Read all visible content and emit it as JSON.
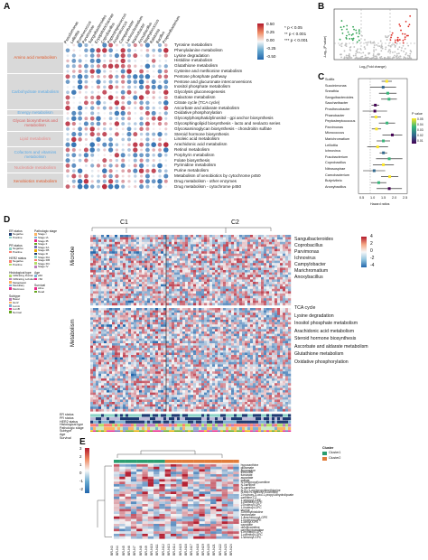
{
  "panels": {
    "A": "A",
    "B": "B",
    "C": "C",
    "D": "D",
    "E": "E"
  },
  "panelA": {
    "col_labels": [
      "Pseudomonas",
      "Lelliottia",
      "Ruminococcus",
      "Parvimonas",
      "Sanguibacteroides",
      "Erysipelotrichaceae",
      "Coprobacillus",
      "Peptostreptococcus",
      "Anaerotruncus",
      "Campylobacter",
      "Lachnoclostridium",
      "Marinobacter",
      "Anoxybacillus",
      "Staphylococcus",
      "Ralstonia",
      "Bacillus",
      "Propionibacterium"
    ],
    "categories": [
      {
        "label": "Amino acid metabolism",
        "color": "#e05a2b"
      },
      {
        "label": "Carbohydrate metabolism",
        "color": "#5aa9e6"
      },
      {
        "label": "Energy metabolism",
        "color": "#5aa9e6"
      },
      {
        "label": "Glycan biosynthesis and metabolism",
        "color": "#d95f5f"
      },
      {
        "label": "Lipid metabolism",
        "color": "#e58a8a"
      },
      {
        "label": "Cofactors and vitamins metabolism",
        "color": "#5aa9e6"
      },
      {
        "label": "Nucleotide metabolism",
        "color": "#e58a8a"
      },
      {
        "label": "Xenobiotics metabolism",
        "color": "#e05a2b"
      }
    ],
    "pathways": [
      "Tyrosine metabolism",
      "Phenylalanine metabolism",
      "Lysine degradation",
      "Histidine metabolism",
      "Glutathione metabolism",
      "Cysteine and methionine metabolism",
      "Pentose phosphate pathway",
      "Pentose and glucuronate interconversions",
      "Inositol phosphate metabolism",
      "Glycolysis gluconeogenesis",
      "Galactose metabolism",
      "Citrate cycle (TCA cycle)",
      "Ascorbate and aldarate metabolism",
      "Oxidative phosphorylation",
      "Glycosylphosphatidylinositol - gpi anchor biosynthesis",
      "Glycosphingolipid biosynthesis - lacto and neolacto series",
      "Glycosaminoglycan biosynthesis - chondroitin sulfate",
      "Steroid hormone biosynthesis",
      "Linoleic acid metabolism",
      "Arachidonic acid metabolism",
      "Retinol metabolism",
      "Porphyrin metabolism",
      "Folate biosynthesis",
      "Pyrimidine metabolism",
      "Purine metabolism",
      "Metabolism of xenobiotics by cytochrome p450",
      "Drug metabolism - other enzymes",
      "Drug metabolism - cytochrome p450"
    ],
    "legend": {
      "ticks": [
        "0.50",
        "0.25",
        "0.00",
        "-0.25",
        "-0.50"
      ],
      "sig": [
        "* p < 0.05",
        "** p < 0.001",
        "*** p < 0.001"
      ]
    }
  },
  "panelB": {
    "xlabel": "Log₂(Fold change)",
    "ylabel": "-Log₁₀(P value)"
  },
  "panelC": {
    "taxa": [
      "Sutifix",
      "Succinimonas",
      "Sneathia",
      "Sanguibacteroides",
      "Saccharibacter",
      "Prosthecobacter",
      "Phaeobacter",
      "Peptostreptococcus",
      "Parvimonas",
      "Micrococcus",
      "Marichromatium",
      "Lelliottia",
      "Ichnovirus",
      "Fusobacterium",
      "Coprobacillus",
      "Nitrosospirae",
      "Carnobacterium",
      "Butyrivibrio",
      "Anoxybacillus"
    ],
    "xlabel": "Hazard ratios",
    "ticks": [
      "0.5",
      "1.0",
      "1.5",
      "2.0",
      "2.5"
    ],
    "legend_title": "P value",
    "legend_ticks": [
      "0.05",
      "0.04",
      "0.03",
      "0.02",
      "0.01"
    ]
  },
  "panelD": {
    "clusters": [
      "C1",
      "C2"
    ],
    "row_groups": [
      "Microbe",
      "Metabolism"
    ],
    "right_labels": [
      "Sanguibacteroides",
      "Coprobacillus",
      "Parvimonas",
      "Ichnovirus",
      "Campylobacter",
      "Marichromatium",
      "Anoxybacillus",
      "TCA cycle",
      "Lysine degradation",
      "Inositol phosphate metabolism",
      "Arachidonic acid metabolism",
      "Steroid hormone biosynthesis",
      "Ascorbate and aldarate metabolism",
      "Glutathione metabolism",
      "Oxidative phosphorylation"
    ],
    "annot_rows": [
      "ER status",
      "PR status",
      "HER2 status",
      "Histological type",
      "Pathologic stage",
      "Subtype",
      "Age",
      "Survival"
    ],
    "scale_ticks": [
      "4",
      "2",
      "0",
      "-2",
      "-4"
    ],
    "legend_groups": [
      {
        "title": "ER status",
        "items": [
          "Negative",
          "Positive"
        ]
      },
      {
        "title": "PR status",
        "items": [
          "Negative",
          "Positive"
        ]
      },
      {
        "title": "HER2 status",
        "items": [
          "Negative",
          "Positive"
        ]
      },
      {
        "title": "Histological type",
        "items": [
          "Infiltrating Ductal",
          "Infiltrating Lobular",
          "Metaplastic",
          "Medullary",
          "Mucinous"
        ]
      },
      {
        "title": "Subtype",
        "items": [
          "Basal",
          "Her2",
          "LumA",
          "LumB",
          "Normal"
        ]
      },
      {
        "title": "Pathologic stage",
        "items": [
          "Stage I",
          "Stage IA",
          "Stage IB",
          "Stage II",
          "Stage IIA",
          "Stage IIB",
          "Stage III",
          "Stage IIIA",
          "Stage IIIB",
          "Stage IIIC",
          "Stage IV"
        ]
      },
      {
        "title": "Age",
        "items": [
          "≥60",
          "<60"
        ]
      },
      {
        "title": "Survival",
        "items": [
          "Alive",
          "Dead"
        ]
      }
    ]
  },
  "panelE": {
    "legend_title": "Cluster",
    "legend_items": [
      "Cluster1",
      "Cluster2"
    ],
    "scale_ticks": [
      "3",
      "2",
      "1",
      "0",
      "-1",
      "-2"
    ],
    "metabolites": [
      "hypoxanthine",
      "glutamate",
      "asparagine",
      "threonine",
      "fumarate",
      "aspartate",
      "malate",
      "N-(oxypropyl)carnitine",
      "N-carnitine",
      "N-carnitine",
      "N-[S-(1-oxy)propyl]methionine",
      "N-oxo-N-hydroxy-3-carnitine",
      "2-hydroxy-3-oxo-1-propyl-dihydrolipoate",
      "carnitine-C2",
      "1-stearoyl-GPE",
      "1-palmitoyl-GPE",
      "2-linoleoyl-GPC",
      "1-linoleoyl-GPC",
      "taurine",
      "3-methylhistidine",
      "heptanoate",
      "1-arachidonoyl-GPE",
      "1-linoleoyl-GPE",
      "1-oleoyl-GPE",
      "caprylate",
      "oleoylcarnitine",
      "palmitoylcarnitine",
      "1-myristoyl-GPC",
      "1-palmitoyl-GPC",
      "1-stearoyl-GPC"
    ],
    "col_labels": [
      "BR-N3",
      "BR-N4",
      "BR-N5",
      "BR-N6",
      "BR-N7",
      "BR-N8",
      "BR-N9",
      "BR-N10",
      "BR-N11",
      "BR-N12",
      "BR-N13",
      "BR-N14",
      "BR-N15",
      "BR-N16",
      "BR-N17",
      "BR-N18",
      "BR-N19",
      "BR-N20",
      "BR-N21",
      "BR-N22",
      "BR-N23",
      "BR-N24"
    ]
  }
}
